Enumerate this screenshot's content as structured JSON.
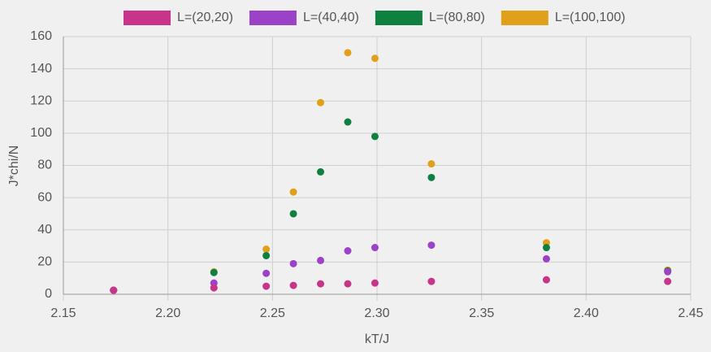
{
  "chart_data": {
    "type": "scatter",
    "xlabel": "kT/J",
    "ylabel": "J*chi/N",
    "x": [
      2.174,
      2.222,
      2.247,
      2.26,
      2.273,
      2.286,
      2.299,
      2.326,
      2.381,
      2.439
    ],
    "series": [
      {
        "name": "L=(20,20)",
        "color": "#c8348a",
        "values": [
          2.5,
          4,
          5,
          5.5,
          6.5,
          6.5,
          7,
          8,
          9,
          8
        ]
      },
      {
        "name": "L=(40,40)",
        "color": "#9b42c8",
        "values": [
          2.5,
          7,
          13,
          19,
          21,
          27,
          29,
          30.5,
          22,
          14
        ]
      },
      {
        "name": "L=(80,80)",
        "color": "#0f8040",
        "values": [
          2.5,
          13.5,
          24,
          50,
          76,
          107,
          98,
          72.5,
          29,
          14.5
        ]
      },
      {
        "name": "L=(100,100)",
        "color": "#e0a01a",
        "values": [
          2.5,
          14,
          28,
          63.5,
          119,
          150,
          146.5,
          81,
          32,
          15
        ]
      }
    ],
    "xlim": [
      2.15,
      2.45
    ],
    "xticks": [
      2.15,
      {
        "value": 2.2,
        "label": "2.20"
      },
      2.25,
      {
        "value": 2.3,
        "label": "2.30"
      },
      2.35,
      {
        "value": 2.4,
        "label": "2.40"
      },
      2.45
    ],
    "ylim": [
      0,
      160
    ],
    "yticks": [
      0,
      20,
      40,
      60,
      80,
      100,
      120,
      140,
      160
    ],
    "grid": true,
    "legend": "top"
  }
}
